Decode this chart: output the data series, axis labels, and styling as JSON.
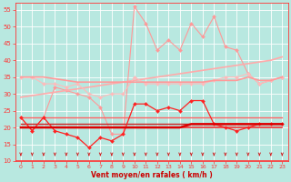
{
  "x": [
    0,
    1,
    2,
    3,
    4,
    5,
    6,
    7,
    8,
    9,
    10,
    11,
    12,
    13,
    14,
    15,
    16,
    17,
    18,
    19,
    20,
    21,
    22,
    23
  ],
  "series": [
    {
      "name": "rafales_max_marker",
      "color": "#ff9999",
      "lw": 0.8,
      "marker": "D",
      "ms": 2.0,
      "values": [
        23,
        19,
        23,
        32,
        31,
        30,
        29,
        26,
        18,
        18,
        56,
        51,
        43,
        46,
        43,
        51,
        47,
        53,
        44,
        43,
        36,
        33,
        34,
        35
      ]
    },
    {
      "name": "rafales_trend_line",
      "color": "#ffaaaa",
      "lw": 1.2,
      "marker": null,
      "ms": 0,
      "values": [
        29,
        29.5,
        30,
        30.5,
        31,
        31.5,
        32,
        32.5,
        33,
        33.5,
        34,
        34.5,
        35,
        35.5,
        36,
        36.5,
        37,
        37.5,
        38,
        38.5,
        39,
        39.5,
        40,
        41
      ]
    },
    {
      "name": "vent_upper_marker",
      "color": "#ffbbbb",
      "lw": 0.8,
      "marker": "D",
      "ms": 2.0,
      "values": [
        35,
        35,
        33,
        33,
        32,
        33,
        30,
        29,
        30,
        30,
        35,
        33,
        33,
        33,
        33,
        33,
        33,
        34,
        35,
        35,
        36,
        33,
        34,
        35
      ]
    },
    {
      "name": "vent_upper_trend",
      "color": "#ff9999",
      "lw": 1.2,
      "marker": null,
      "ms": 0,
      "values": [
        35,
        35,
        35,
        34.5,
        34,
        33.5,
        33.5,
        33.5,
        33.5,
        33.5,
        33.5,
        33.5,
        33.5,
        33.5,
        33.5,
        33.5,
        33.5,
        34,
        34,
        34,
        35,
        34,
        34,
        35
      ]
    },
    {
      "name": "vent_moy_flatline1",
      "color": "#ff6666",
      "lw": 1.0,
      "marker": null,
      "ms": 0,
      "values": [
        23,
        23,
        23,
        23,
        23,
        23,
        23,
        23,
        23,
        23,
        23,
        23,
        23,
        23,
        23,
        23,
        23,
        23,
        23,
        23,
        23,
        23,
        23,
        23
      ]
    },
    {
      "name": "vent_moy_flatline2",
      "color": "#cc2222",
      "lw": 1.0,
      "marker": null,
      "ms": 0,
      "values": [
        21,
        21,
        21,
        21,
        21,
        21,
        21,
        21,
        21,
        21,
        21,
        21,
        21,
        21,
        21,
        21,
        21,
        21,
        21,
        21,
        21,
        21,
        21,
        21
      ]
    },
    {
      "name": "vent_moy_flatline3",
      "color": "#ee3333",
      "lw": 1.2,
      "marker": null,
      "ms": 0,
      "values": [
        20,
        20,
        20,
        20,
        20,
        20,
        20,
        20,
        20,
        20,
        20,
        20,
        20,
        20,
        20,
        20,
        20,
        20,
        20,
        20,
        20,
        20,
        20,
        20
      ]
    },
    {
      "name": "vent_inst_marker",
      "color": "#ff2222",
      "lw": 0.9,
      "marker": "D",
      "ms": 2.0,
      "values": [
        23,
        19,
        23,
        19,
        18,
        17,
        14,
        17,
        16,
        18,
        27,
        27,
        25,
        26,
        25,
        28,
        28,
        21,
        20,
        19,
        20,
        21,
        21,
        21
      ]
    },
    {
      "name": "vent_moy_bold",
      "color": "#dd0000",
      "lw": 1.8,
      "marker": null,
      "ms": 0,
      "values": [
        20,
        20,
        20,
        20,
        20,
        20,
        20,
        20,
        20,
        20,
        20,
        20,
        20,
        20,
        20,
        21,
        21,
        21,
        21,
        21,
        21,
        21,
        21,
        21
      ]
    }
  ],
  "xlabel": "Vent moyen/en rafales ( km/h )",
  "ylim": [
    10,
    57
  ],
  "yticks": [
    10,
    15,
    20,
    25,
    30,
    35,
    40,
    45,
    50,
    55
  ],
  "xlim": [
    -0.5,
    23.5
  ],
  "xticks": [
    0,
    1,
    2,
    3,
    4,
    5,
    6,
    7,
    8,
    9,
    10,
    11,
    12,
    13,
    14,
    15,
    16,
    17,
    18,
    19,
    20,
    21,
    22,
    23
  ],
  "bg_color": "#b8e8e0",
  "grid_color": "#ffffff",
  "tick_color": "#ff3333",
  "xlabel_color": "#cc0000",
  "arrow_color": "#cc2222"
}
